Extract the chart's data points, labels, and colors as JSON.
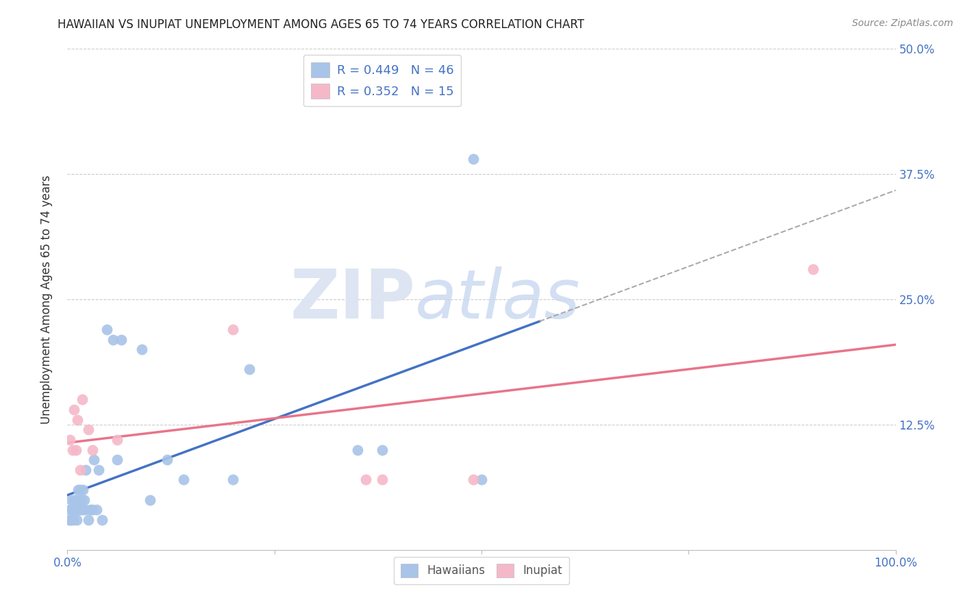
{
  "title": "HAWAIIAN VS INUPIAT UNEMPLOYMENT AMONG AGES 65 TO 74 YEARS CORRELATION CHART",
  "source": "Source: ZipAtlas.com",
  "ylabel": "Unemployment Among Ages 65 to 74 years",
  "xlim": [
    0,
    1.0
  ],
  "ylim": [
    0,
    0.5
  ],
  "yticks": [
    0.0,
    0.125,
    0.25,
    0.375,
    0.5
  ],
  "yticklabels_right": [
    "",
    "12.5%",
    "25.0%",
    "37.5%",
    "50.0%"
  ],
  "xtick_left_label": "0.0%",
  "xtick_right_label": "100.0%",
  "legend_r_hawaiian": "R = 0.449",
  "legend_n_hawaiian": "N = 46",
  "legend_r_inupiat": "R = 0.352",
  "legend_n_inupiat": "N = 15",
  "hawaiian_color": "#a8c4e8",
  "inupiat_color": "#f5b8c8",
  "hawaiian_line_color": "#4472c4",
  "inupiat_line_color": "#e8748a",
  "tick_label_color": "#4472c4",
  "watermark_zip": "ZIP",
  "watermark_atlas": "atlas",
  "hawaiian_x": [
    0.002,
    0.003,
    0.004,
    0.005,
    0.005,
    0.006,
    0.007,
    0.008,
    0.008,
    0.009,
    0.01,
    0.01,
    0.011,
    0.012,
    0.013,
    0.014,
    0.015,
    0.015,
    0.016,
    0.017,
    0.018,
    0.019,
    0.02,
    0.021,
    0.022,
    0.025,
    0.028,
    0.03,
    0.032,
    0.035,
    0.038,
    0.042,
    0.048,
    0.055,
    0.06,
    0.065,
    0.09,
    0.1,
    0.12,
    0.14,
    0.2,
    0.22,
    0.35,
    0.38,
    0.49,
    0.5
  ],
  "hawaiian_y": [
    0.03,
    0.04,
    0.03,
    0.04,
    0.05,
    0.04,
    0.03,
    0.05,
    0.04,
    0.05,
    0.04,
    0.05,
    0.03,
    0.04,
    0.06,
    0.04,
    0.04,
    0.06,
    0.05,
    0.05,
    0.04,
    0.06,
    0.05,
    0.04,
    0.08,
    0.03,
    0.04,
    0.04,
    0.09,
    0.04,
    0.08,
    0.03,
    0.22,
    0.21,
    0.09,
    0.21,
    0.2,
    0.05,
    0.09,
    0.07,
    0.07,
    0.18,
    0.1,
    0.1,
    0.39,
    0.07
  ],
  "inupiat_x": [
    0.003,
    0.006,
    0.008,
    0.01,
    0.012,
    0.015,
    0.018,
    0.025,
    0.03,
    0.06,
    0.2,
    0.36,
    0.38,
    0.49,
    0.9
  ],
  "inupiat_y": [
    0.11,
    0.1,
    0.14,
    0.1,
    0.13,
    0.08,
    0.15,
    0.12,
    0.1,
    0.11,
    0.22,
    0.07,
    0.07,
    0.07,
    0.28
  ]
}
